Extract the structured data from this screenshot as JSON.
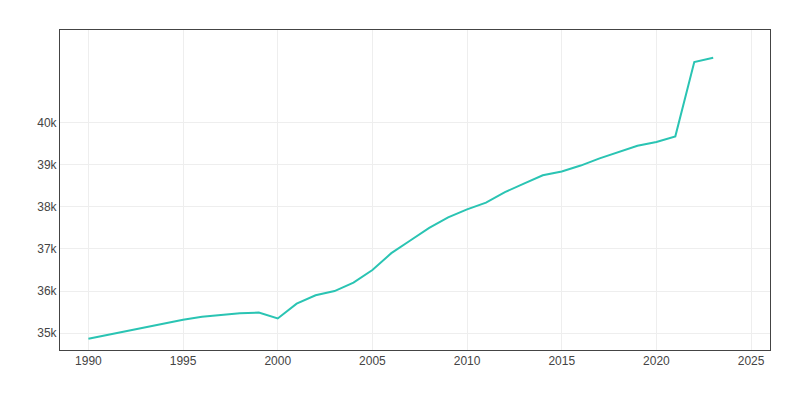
{
  "chart_data": {
    "type": "line",
    "x": [
      1990,
      1991,
      1992,
      1993,
      1994,
      1995,
      1996,
      1997,
      1998,
      1999,
      2000,
      2001,
      2002,
      2003,
      2004,
      2005,
      2006,
      2007,
      2008,
      2009,
      2010,
      2011,
      2012,
      2013,
      2014,
      2015,
      2016,
      2017,
      2018,
      2019,
      2020,
      2021,
      2022,
      2023
    ],
    "values": [
      34869,
      34960,
      35050,
      35140,
      35230,
      35320,
      35390,
      35430,
      35470,
      35490,
      35349,
      35700,
      35900,
      36000,
      36200,
      36500,
      36900,
      37200,
      37500,
      37750,
      37941,
      38100,
      38350,
      38550,
      38750,
      38841,
      38980,
      39150,
      39300,
      39450,
      39540,
      39674,
      41440,
      41540
    ],
    "color": "#2ac4b3",
    "xlim": [
      1988.5,
      2026
    ],
    "xticks": [
      1990,
      1995,
      2000,
      2005,
      2010,
      2015,
      2020,
      2025
    ],
    "ylim": [
      34600,
      42200
    ],
    "yticks": [
      {
        "value": 35000,
        "label": "35k"
      },
      {
        "value": 36000,
        "label": "36k"
      },
      {
        "value": 37000,
        "label": "37k"
      },
      {
        "value": 38000,
        "label": "38k"
      },
      {
        "value": 39000,
        "label": "39k"
      },
      {
        "value": 40000,
        "label": "40k"
      }
    ],
    "grid": true
  }
}
